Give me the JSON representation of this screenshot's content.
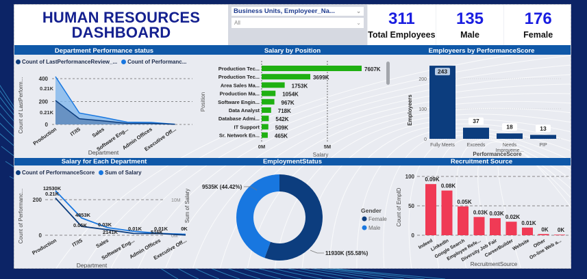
{
  "header": {
    "title_line1": "HUMAN RESOURCES",
    "title_line2": "DASHBOARD"
  },
  "slicer": {
    "field_label": "Business Units, Employeer_Na...",
    "selected_value": "All"
  },
  "kpis": [
    {
      "value": "311",
      "label": "Total Employees"
    },
    {
      "value": "135",
      "label": "Male"
    },
    {
      "value": "176",
      "label": "Female"
    }
  ],
  "colors": {
    "title": "#14208f",
    "kpi_value": "#1a1ee0",
    "panel_header": "#0f58a8",
    "dark_blue": "#0c3d7e",
    "light_blue": "#1877e0",
    "green": "#1fb012",
    "red": "#f03a55"
  },
  "chart_data": [
    {
      "id": "dept-performance",
      "type": "area",
      "title": "Department Performance status",
      "legend": [
        "Count of LastPerformanceReview_...",
        "Count of Performanc..."
      ],
      "legend_position": "top-left",
      "xlabel": "Department",
      "ylabel": "Count of LastPerform...",
      "categories": [
        "Production",
        "IT/IS",
        "Sales",
        "Software Eng...",
        "Admin Offices",
        "Executive Off..."
      ],
      "series": [
        {
          "name": "Count of LastPerformanceReview_...",
          "values": [
            209,
            50,
            31,
            10,
            9,
            1
          ]
        },
        {
          "name": "Count of PerformanceScore",
          "values": [
            418,
            100,
            62,
            20,
            18,
            2
          ]
        }
      ],
      "data_labels": [
        "0.21K",
        "0.21K"
      ],
      "yticks": [
        "0",
        "200",
        "400"
      ],
      "ylim": [
        0,
        430
      ],
      "grid": true
    },
    {
      "id": "salary-by-position",
      "type": "bar",
      "orientation": "horizontal",
      "title": "Salary by Position",
      "xlabel": "Salary",
      "ylabel": "Position",
      "categories": [
        "Production Tec...",
        "Production Tec...",
        "Area Sales Ma...",
        "Production Ma...",
        "Software Engin...",
        "Data Analyst",
        "Database Admi...",
        "IT Support",
        "Sr. Network En..."
      ],
      "values": [
        7607,
        3699,
        1753,
        1054,
        967,
        718,
        542,
        509,
        465
      ],
      "value_labels": [
        "7607K",
        "3699K",
        "1753K",
        "1054K",
        "967K",
        "718K",
        "542K",
        "509K",
        "465K"
      ],
      "xticks": [
        "0M",
        "5M"
      ],
      "xlim": [
        0,
        8000
      ],
      "units": "K"
    },
    {
      "id": "employees-by-performance",
      "type": "bar",
      "title": "Employeers by PerformanceScore",
      "xlabel": "PerformanceScore",
      "ylabel": "Employeers",
      "categories": [
        "Fully Meets",
        "Exceeds",
        "Needs Improveme...",
        "PIP"
      ],
      "values": [
        243,
        37,
        18,
        13
      ],
      "yticks": [
        "0",
        "100",
        "200"
      ],
      "ylim": [
        0,
        260
      ],
      "grid": true
    },
    {
      "id": "salary-by-department",
      "type": "line",
      "title": "Salary for Each Department",
      "legend": [
        "Count of PerformanceScore",
        "Sum of Salary"
      ],
      "legend_position": "top-left",
      "xlabel": "Department",
      "ylabel": "Count of Performanc...",
      "y2label": "Sum of Salary",
      "categories": [
        "Production",
        "IT/IS",
        "Sales",
        "Software Eng...",
        "Admin Offices",
        "Executive Off..."
      ],
      "series": [
        {
          "name": "Count of PerformanceScore",
          "axis": "left",
          "values": [
            209,
            50,
            31,
            10,
            9,
            1
          ],
          "labels": [
            "0.21K",
            "0.05K",
            "0.03K",
            "0.01K",
            "0.01K",
            "0K"
          ]
        },
        {
          "name": "Sum of Salary",
          "axis": "right",
          "values": [
            12530,
            4853,
            2141,
            1100,
            516,
            250
          ],
          "labels": [
            "12530K",
            "4853K",
            "2141K",
            "",
            "516K",
            ""
          ]
        }
      ],
      "yticks": [
        "0",
        "200"
      ],
      "y2ticks": [
        "0M",
        "10M"
      ],
      "ylim": [
        0,
        260
      ],
      "y2lim": [
        0,
        13000
      ],
      "grid": true
    },
    {
      "id": "employment-status",
      "type": "pie",
      "donut": true,
      "title": "EmploymentStatus",
      "legend_title": "Gender",
      "legend_position": "right",
      "slices": [
        {
          "label": "Female",
          "value": 11930,
          "display": "11930K (55.58%)",
          "percent": 55.58
        },
        {
          "label": "Male",
          "value": 9535,
          "display": "9535K (44.42%)",
          "percent": 44.42
        }
      ]
    },
    {
      "id": "recruitment-source",
      "type": "bar",
      "title": "Recruitment Source",
      "xlabel": "RecruitmentSource",
      "ylabel": "Count of EmpID",
      "categories": [
        "Indeed",
        "LinkedIn",
        "Google Search",
        "Employee Refe...",
        "Diversity Job Fair",
        "CareerBuilder",
        "Website",
        "Other",
        "On-line Web a..."
      ],
      "values": [
        87,
        76,
        49,
        31,
        29,
        23,
        13,
        2,
        1
      ],
      "value_labels": [
        "0.09K",
        "0.08K",
        "0.05K",
        "0.03K",
        "0.03K",
        "0.02K",
        "0.01K",
        "0K",
        "0K"
      ],
      "yticks": [
        "0",
        "50",
        "100"
      ],
      "ylim": [
        0,
        100
      ],
      "grid": true
    }
  ]
}
